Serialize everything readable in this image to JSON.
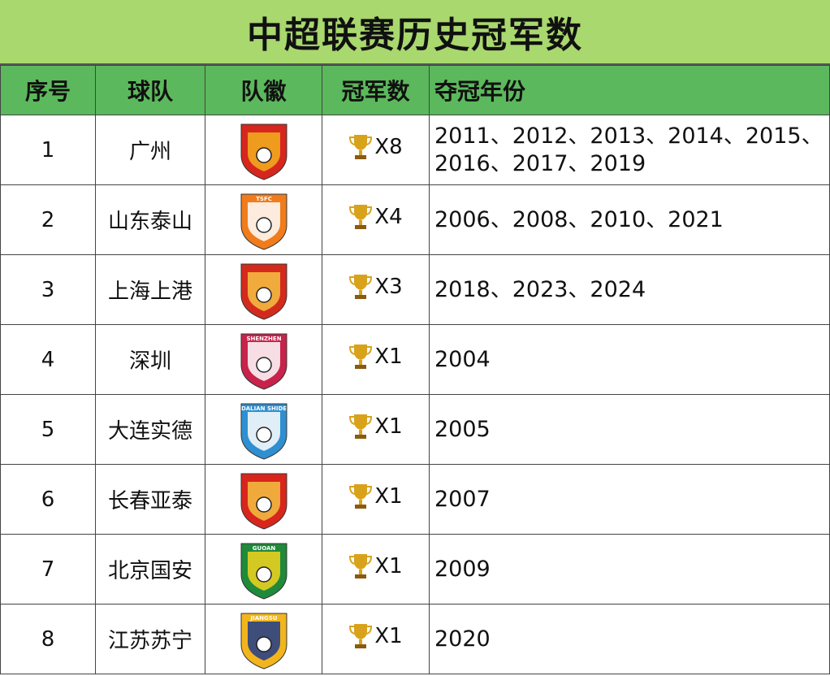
{
  "title": "中超联赛历史冠军数",
  "headers": [
    "序号",
    "球队",
    "队徽",
    "冠军数",
    "夺冠年份"
  ],
  "rows": [
    {
      "rank": "1",
      "team": "广州",
      "count": "X8",
      "years": "2011、2012、2013、2014、2015、2016、2017、2019",
      "logo_color": "#d7261e",
      "logo_accent": "#f2b01e",
      "logo_text": ""
    },
    {
      "rank": "2",
      "team": "山东泰山",
      "count": "X4",
      "years": "2006、2008、2010、2021",
      "logo_color": "#f07c1b",
      "logo_accent": "#ffffff",
      "logo_text": "TSFC"
    },
    {
      "rank": "3",
      "team": "上海上港",
      "count": "X3",
      "years": "2018、2023、2024",
      "logo_color": "#d42a1e",
      "logo_accent": "#f5c242",
      "logo_text": ""
    },
    {
      "rank": "4",
      "team": "深圳",
      "count": "X1",
      "years": "2004",
      "logo_color": "#c8234a",
      "logo_accent": "#ffffff",
      "logo_text": "SHENZHEN"
    },
    {
      "rank": "5",
      "team": "大连实德",
      "count": "X1",
      "years": "2005",
      "logo_color": "#2f8fd0",
      "logo_accent": "#ffffff",
      "logo_text": "DALIAN SHIDE"
    },
    {
      "rank": "6",
      "team": "长春亚泰",
      "count": "X1",
      "years": "2007",
      "logo_color": "#d8261c",
      "logo_accent": "#f5c242",
      "logo_text": ""
    },
    {
      "rank": "7",
      "team": "北京国安",
      "count": "X1",
      "years": "2009",
      "logo_color": "#1f8a3a",
      "logo_accent": "#f4d31f",
      "logo_text": "GUOAN"
    },
    {
      "rank": "8",
      "team": "江苏苏宁",
      "count": "X1",
      "years": "2020",
      "logo_color": "#f2b51d",
      "logo_accent": "#1e3b8a",
      "logo_text": "JIANGSU"
    }
  ],
  "trophy_icon": "trophy-icon",
  "colors": {
    "title_bg": "#a9d86e",
    "header_bg": "#5cb85c",
    "trophy": "#d9a21b"
  }
}
